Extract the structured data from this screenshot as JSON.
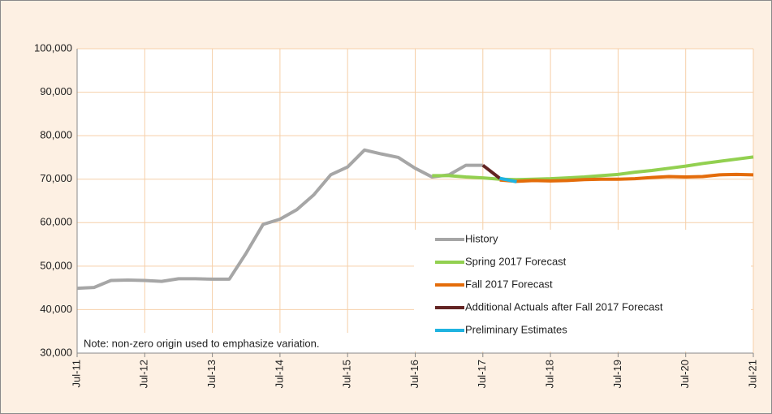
{
  "chart_data": {
    "type": "line",
    "note": "Note: non-zero origin used to emphasize variation.",
    "x": [
      "2011-07",
      "2011-10",
      "2012-01",
      "2012-04",
      "2012-07",
      "2012-10",
      "2013-01",
      "2013-04",
      "2013-07",
      "2013-10",
      "2014-01",
      "2014-04",
      "2014-07",
      "2014-10",
      "2015-01",
      "2015-04",
      "2015-07",
      "2015-10",
      "2016-01",
      "2016-04",
      "2016-07",
      "2016-10",
      "2017-01",
      "2017-04",
      "2017-07",
      "2017-10",
      "2018-01",
      "2018-04",
      "2018-07",
      "2018-10",
      "2019-01",
      "2019-04",
      "2019-07",
      "2019-10",
      "2020-01",
      "2020-04",
      "2020-07",
      "2020-10",
      "2021-01",
      "2021-04",
      "2021-07"
    ],
    "series": [
      {
        "name": "History",
        "color": "#a6a6a6",
        "values": [
          44900,
          45100,
          46700,
          46800,
          46700,
          46500,
          47100,
          47100,
          47000,
          47000,
          53000,
          59600,
          60800,
          63000,
          66400,
          71000,
          72800,
          76700,
          75800,
          75000,
          72500,
          70500,
          71000,
          73200,
          73200,
          null,
          null,
          null,
          null,
          null,
          null,
          null,
          null,
          null,
          null,
          null,
          null,
          null,
          null,
          null,
          null
        ]
      },
      {
        "name": "Spring 2017 Forecast",
        "color": "#92d050",
        "values": [
          null,
          null,
          null,
          null,
          null,
          null,
          null,
          null,
          null,
          null,
          null,
          null,
          null,
          null,
          null,
          null,
          null,
          null,
          null,
          null,
          null,
          70800,
          70800,
          70500,
          70300,
          70000,
          69900,
          70000,
          70100,
          70300,
          70500,
          70800,
          71100,
          71600,
          72000,
          72500,
          73000,
          73600,
          74100,
          74600,
          75100
        ]
      },
      {
        "name": "Fall 2017 Forecast",
        "color": "#e46c0a",
        "values": [
          null,
          null,
          null,
          null,
          null,
          null,
          null,
          null,
          null,
          null,
          null,
          null,
          null,
          null,
          null,
          null,
          null,
          null,
          null,
          null,
          null,
          null,
          null,
          null,
          null,
          69800,
          69500,
          69700,
          69600,
          69700,
          69900,
          70000,
          70000,
          70100,
          70400,
          70600,
          70500,
          70600,
          71000,
          71100,
          71000
        ]
      },
      {
        "name": "Additional Actuals after Fall 2017 Forecast",
        "color": "#632423",
        "values": [
          null,
          null,
          null,
          null,
          null,
          null,
          null,
          null,
          null,
          null,
          null,
          null,
          null,
          null,
          null,
          null,
          null,
          null,
          null,
          null,
          null,
          null,
          null,
          null,
          73200,
          70200,
          null,
          null,
          null,
          null,
          null,
          null,
          null,
          null,
          null,
          null,
          null,
          null,
          null,
          null,
          null
        ]
      },
      {
        "name": "Preliminary Estimates",
        "color": "#1fb3e0",
        "values": [
          null,
          null,
          null,
          null,
          null,
          null,
          null,
          null,
          null,
          null,
          null,
          null,
          null,
          null,
          null,
          null,
          null,
          null,
          null,
          null,
          null,
          null,
          null,
          null,
          null,
          70200,
          69400,
          null,
          null,
          null,
          null,
          null,
          null,
          null,
          null,
          null,
          null,
          null,
          null,
          null,
          null
        ]
      }
    ],
    "xlim": [
      "2011-07",
      "2021-07"
    ],
    "xticks": [
      {
        "value": "2011-07",
        "label": "Jul-11"
      },
      {
        "value": "2012-07",
        "label": "Jul-12"
      },
      {
        "value": "2013-07",
        "label": "Jul-13"
      },
      {
        "value": "2014-07",
        "label": "Jul-14"
      },
      {
        "value": "2015-07",
        "label": "Jul-15"
      },
      {
        "value": "2016-07",
        "label": "Jul-16"
      },
      {
        "value": "2017-07",
        "label": "Jul-17"
      },
      {
        "value": "2018-07",
        "label": "Jul-18"
      },
      {
        "value": "2019-07",
        "label": "Jul-19"
      },
      {
        "value": "2020-07",
        "label": "Jul-20"
      },
      {
        "value": "2021-07",
        "label": "Jul-21"
      }
    ],
    "ylim": [
      30000,
      100000
    ],
    "yticks": [
      {
        "value": 30000,
        "label": "30,000"
      },
      {
        "value": 40000,
        "label": "40,000"
      },
      {
        "value": 50000,
        "label": "50,000"
      },
      {
        "value": 60000,
        "label": "60,000"
      },
      {
        "value": 70000,
        "label": "70,000"
      },
      {
        "value": 80000,
        "label": "80,000"
      },
      {
        "value": 90000,
        "label": "90,000"
      },
      {
        "value": 100000,
        "label": "100,000"
      }
    ],
    "grid": true,
    "legend": "lower right"
  }
}
